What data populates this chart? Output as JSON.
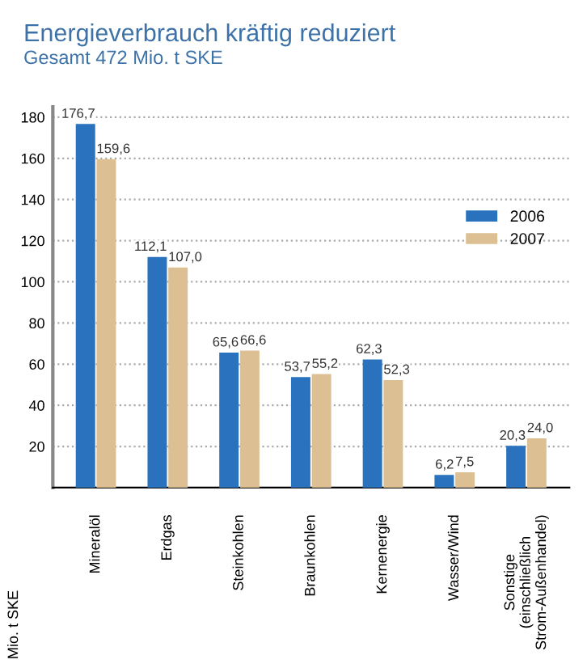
{
  "chart_data": {
    "type": "bar",
    "title": "Energieverbrauch kräftig reduziert",
    "subtitle": "Gesamt 472 Mio. t SKE",
    "ylabel": "Mio. t SKE",
    "categories": [
      "Mineralöl",
      "Erdgas",
      "Steinkohlen",
      "Braunkohlen",
      "Kernenergie",
      "Wasser/Wind",
      "Sonstige\n(einschließlich\nStrom-Außenhandel)"
    ],
    "series": [
      {
        "name": "2006",
        "color": "#2a72bd",
        "values": [
          176.7,
          112.1,
          65.6,
          53.7,
          62.3,
          6.2,
          20.3
        ],
        "value_labels": [
          "176,7",
          "112,1",
          "65,6",
          "53,7",
          "62,3",
          "6,2",
          "20,3"
        ]
      },
      {
        "name": "2007",
        "color": "#dcc093",
        "values": [
          159.6,
          107.0,
          66.6,
          55.2,
          52.3,
          7.5,
          24.0
        ],
        "value_labels": [
          "159,6",
          "107,0",
          "66,6",
          "55,2",
          "52,3",
          "7,5",
          "24,0"
        ]
      }
    ],
    "ylim": [
      0,
      185
    ],
    "yticks": [
      20,
      40,
      60,
      80,
      100,
      120,
      140,
      160,
      180
    ],
    "grid": "y",
    "legend": "right"
  }
}
